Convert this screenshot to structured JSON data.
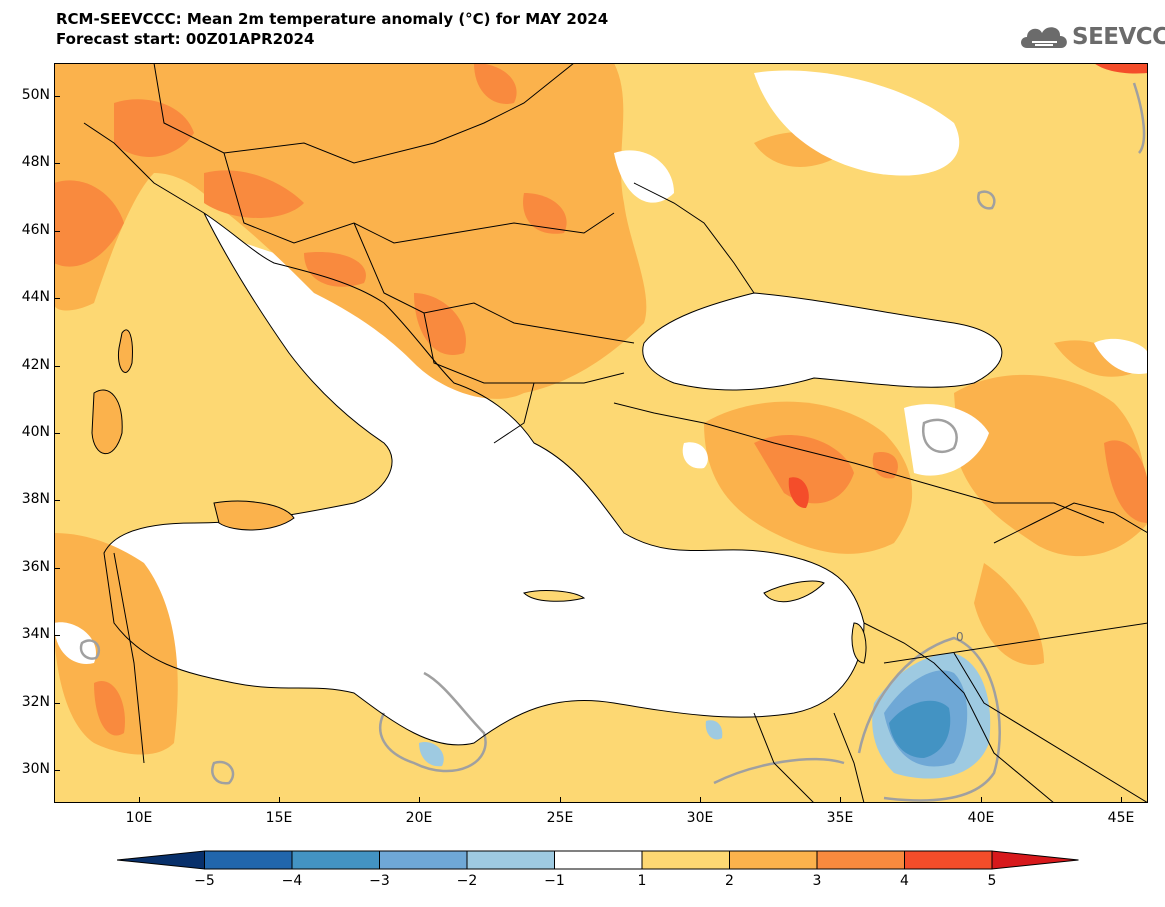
{
  "header": {
    "title_line1": "RCM-SEEVCCC: Mean 2m temperature anomaly (°C) for MAY 2024",
    "title_line2": "Forecast start: 00Z01APR2024",
    "logo_text": "SEEVCCC"
  },
  "map": {
    "lat_labels": [
      "50N",
      "48N",
      "46N",
      "44N",
      "42N",
      "40N",
      "38N",
      "36N",
      "34N",
      "32N",
      "30N"
    ],
    "lon_labels": [
      "10E",
      "15E",
      "20E",
      "25E",
      "30E",
      "35E",
      "40E",
      "45E"
    ],
    "contour_label": "0"
  },
  "colorbar": {
    "labels": [
      "−5",
      "−4",
      "−3",
      "−2",
      "−1",
      "1",
      "2",
      "3",
      "4",
      "5"
    ],
    "colors": [
      "#08306b",
      "#2166ac",
      "#4393c3",
      "#6fa8d6",
      "#9ecae1",
      "#ffffff",
      "#fdd873",
      "#fbb24c",
      "#f98a3e",
      "#f44d2a",
      "#d7191c"
    ]
  },
  "colors": {
    "sea": "#ffffff",
    "anom_1_2": "#fdd873",
    "anom_2_3": "#fbb24c",
    "anom_3_4": "#f98a3e",
    "anom_4_5": "#f44d2a",
    "anom_neg_1_2": "#9ecae1",
    "anom_neg_2_3": "#6fa8d6",
    "anom_neg_3_4": "#4393c3",
    "zero_contour": "#a0a0a0",
    "border": "#000000"
  }
}
